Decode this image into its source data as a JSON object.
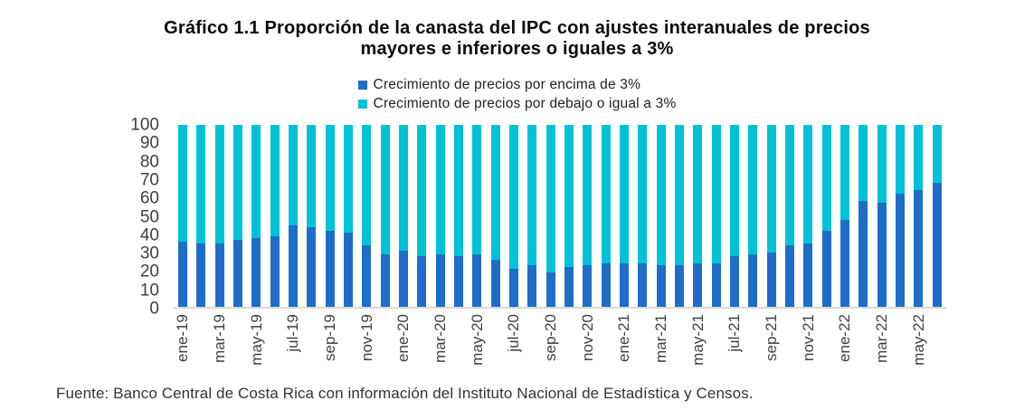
{
  "title": {
    "line1": "Gráfico 1.1 Proporción de la canasta del IPC con ajustes interanuales de precios",
    "line2": "mayores e inferiores o iguales a 3%"
  },
  "footer": {
    "text": "Fuente: Banco Central de Costa Rica con información del Instituto Nacional de Estadística y Censos."
  },
  "chart_data": {
    "type": "bar",
    "stacked": true,
    "stack_total": 100,
    "orientation": "vertical",
    "title": "Gráfico 1.1 Proporción de la canasta del IPC con ajustes interanuales de precios mayores e inferiores o iguales a 3%",
    "xlabel": "",
    "ylabel": "",
    "ylim": [
      0,
      100
    ],
    "y_ticks": [
      0,
      10,
      20,
      30,
      40,
      50,
      60,
      70,
      80,
      90,
      100
    ],
    "grid": false,
    "legend_position": "top-center",
    "axis_line_color": "#d9d9d9",
    "tick_text_color": "#3f3f3f",
    "x_label_every": 2,
    "categories": [
      "ene-19",
      "feb-19",
      "mar-19",
      "abr-19",
      "may-19",
      "jun-19",
      "jul-19",
      "ago-19",
      "sep-19",
      "oct-19",
      "nov-19",
      "dic-19",
      "ene-20",
      "feb-20",
      "mar-20",
      "abr-20",
      "may-20",
      "jun-20",
      "jul-20",
      "ago-20",
      "sep-20",
      "oct-20",
      "nov-20",
      "dic-20",
      "ene-21",
      "feb-21",
      "mar-21",
      "abr-21",
      "may-21",
      "jun-21",
      "jul-21",
      "ago-21",
      "sep-21",
      "oct-21",
      "nov-21",
      "dic-21",
      "ene-22",
      "feb-22",
      "mar-22",
      "abr-22",
      "may-22",
      "jun-22"
    ],
    "visible_x_tick_labels": [
      "ene-19",
      "mar-19",
      "may-19",
      "jul-19",
      "sep-19",
      "nov-19",
      "ene-20",
      "mar-20",
      "may-20",
      "jul-20",
      "sep-20",
      "nov-20",
      "ene-21",
      "mar-21",
      "may-21",
      "jul-21",
      "sep-21",
      "nov-21",
      "ene-22",
      "mar-22",
      "may-22"
    ],
    "series": [
      {
        "name": "Crecimiento de precios por encima de 3%",
        "color": "#1e6ec9",
        "values": [
          36,
          35,
          35,
          37,
          38,
          39,
          45,
          44,
          42,
          41,
          34,
          29,
          31,
          28,
          29,
          28,
          29,
          26,
          21,
          23,
          19,
          22,
          23,
          24,
          24,
          24,
          23,
          23,
          24,
          24,
          28,
          29,
          30,
          34,
          35,
          42,
          48,
          58,
          57,
          62,
          64,
          68
        ]
      },
      {
        "name": "Crecimiento de precios por debajo o igual a 3%",
        "color": "#00c2d6",
        "values": [
          64,
          65,
          65,
          63,
          62,
          61,
          55,
          56,
          58,
          59,
          66,
          71,
          69,
          72,
          71,
          72,
          71,
          74,
          79,
          77,
          81,
          78,
          77,
          76,
          76,
          76,
          77,
          77,
          76,
          76,
          72,
          71,
          70,
          66,
          65,
          58,
          52,
          42,
          43,
          38,
          36,
          32
        ]
      }
    ]
  }
}
